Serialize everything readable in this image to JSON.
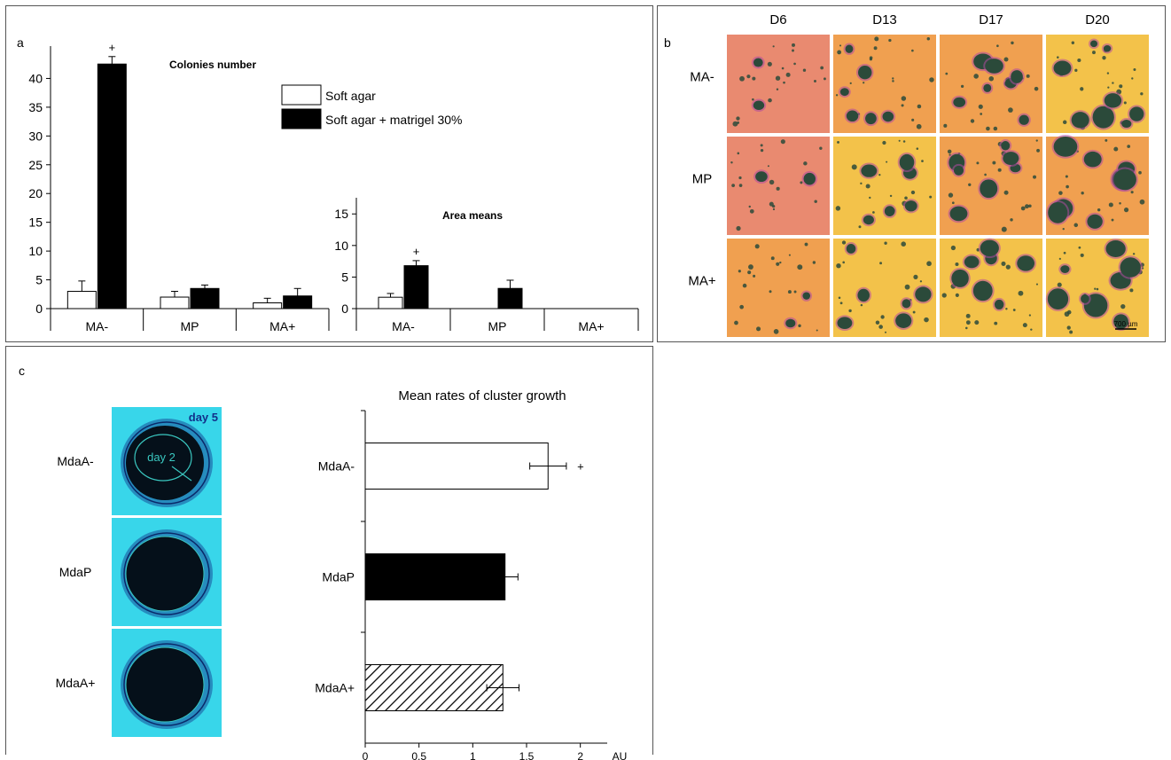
{
  "panel_a": {
    "letter": "a",
    "legend": [
      "Soft agar",
      "Soft agar + matrigel 30%"
    ]
  },
  "panel_b": {
    "letter": "b",
    "columns": [
      "D6",
      "D13",
      "D17",
      "D20"
    ],
    "rows": [
      "MA-",
      "MP",
      "MA+"
    ],
    "scale_bar_label": "700 µm",
    "colors": {
      "background_orange": "#f0a050",
      "background_pink": "#e98a70",
      "background_yellow": "#f3c24a",
      "colony": "#2b4a3a"
    }
  },
  "panel_c": {
    "letter": "c",
    "image_rows": [
      "MdaA-",
      "MdaP",
      "MdaA+"
    ],
    "day5_label": "day 5",
    "day2_label": "day 2",
    "colors": {
      "cyan": "#38d6ea",
      "cluster": "#05101a"
    }
  },
  "chart_data": [
    {
      "type": "bar",
      "title": "Colonies number",
      "categories": [
        "MA-",
        "MP",
        "MA+"
      ],
      "series": [
        {
          "name": "Soft agar",
          "values": [
            3,
            2,
            1
          ],
          "errors": [
            1.8,
            1.0,
            0.8
          ]
        },
        {
          "name": "Soft agar + matrigel 30%",
          "values": [
            42.5,
            3.5,
            2.2
          ],
          "errors": [
            1.3,
            0.6,
            1.3
          ]
        }
      ],
      "ylim": [
        0,
        45
      ],
      "yticks": [
        0,
        5,
        10,
        15,
        20,
        25,
        30,
        35,
        40
      ],
      "annotations": [
        {
          "category": "MA-",
          "series": 1,
          "text": "+"
        }
      ]
    },
    {
      "type": "bar",
      "title": "Area means",
      "categories": [
        "MA-",
        "MP",
        "MA+"
      ],
      "series": [
        {
          "name": "Soft agar",
          "values": [
            1.8,
            0,
            0
          ],
          "errors": [
            0.6,
            0,
            0
          ]
        },
        {
          "name": "Soft agar + matrigel 30%",
          "values": [
            6.8,
            3.2,
            0
          ],
          "errors": [
            0.8,
            1.3,
            0
          ]
        }
      ],
      "ylim": [
        0,
        17
      ],
      "yticks": [
        0,
        5,
        10,
        15
      ],
      "annotations": [
        {
          "category": "MA-",
          "series": 1,
          "text": "+"
        }
      ]
    },
    {
      "type": "bar",
      "orientation": "horizontal",
      "title": "Mean rates of cluster growth",
      "categories": [
        "MdaA-",
        "MdaP",
        "MdaA+"
      ],
      "values": [
        1.7,
        1.3,
        1.28
      ],
      "errors": [
        0.17,
        0.12,
        0.15
      ],
      "fills": [
        "white",
        "black",
        "hatched"
      ],
      "xlim": [
        0,
        2.25
      ],
      "xticks": [
        0,
        0.5,
        1,
        1.5,
        2
      ],
      "xtick_labels": [
        "0",
        "0.5",
        "1",
        "1.5",
        "2"
      ],
      "xlabel": "AU",
      "annotations": [
        {
          "category": "MdaA-",
          "text": "+"
        }
      ]
    }
  ]
}
